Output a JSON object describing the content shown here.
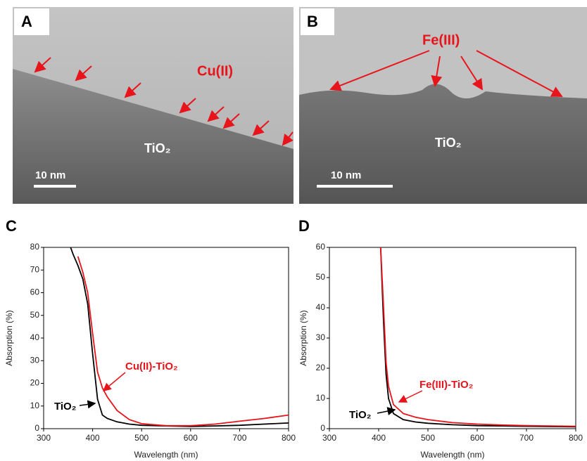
{
  "images": [
    {
      "panel": "A",
      "labels": [
        "Cu(II)",
        "TiO₂"
      ],
      "scale_bar": "10 nm"
    },
    {
      "panel": "B",
      "labels": [
        "Fe(III)",
        "TiO₂"
      ],
      "scale_bar": "10 nm"
    }
  ],
  "chart_data": [
    {
      "type": "line",
      "panel": "C",
      "x_label": "Wavelength (nm)",
      "y_label": "Absorption (%)",
      "x": [
        355,
        360,
        370,
        380,
        390,
        400,
        410,
        420,
        430,
        450,
        475,
        500,
        550,
        600,
        650,
        700,
        750,
        800
      ],
      "series": [
        {
          "name": "TiO₂",
          "color": "#000000",
          "values": [
            80,
            77,
            72,
            66,
            55,
            33,
            13,
            6,
            4.5,
            3,
            2,
            1.5,
            1.2,
            1,
            1.2,
            1.5,
            2,
            2.5
          ]
        },
        {
          "name": "Cu(II)-TiO₂",
          "color": "#e8141b",
          "values": [
            null,
            null,
            76,
            69,
            60,
            42,
            25,
            18,
            14,
            8,
            4,
            2.2,
            1.3,
            1.3,
            2,
            3.3,
            4.5,
            6
          ]
        }
      ],
      "xlim": [
        300,
        800
      ],
      "xticks": [
        300,
        400,
        500,
        600,
        700,
        800
      ],
      "ylim": [
        0,
        80
      ],
      "yticks": [
        0,
        10,
        20,
        30,
        40,
        50,
        60,
        70,
        80
      ]
    },
    {
      "type": "line",
      "panel": "D",
      "x_label": "Wavelength (nm)",
      "y_label": "Absorption (%)",
      "x": [
        404,
        410,
        415,
        420,
        430,
        450,
        475,
        500,
        550,
        600,
        650,
        700,
        750,
        800
      ],
      "series": [
        {
          "name": "TiO₂",
          "color": "#000000",
          "values": [
            60,
            35,
            18,
            10,
            5,
            3,
            2.2,
            1.8,
            1.3,
            1,
            0.9,
            0.8,
            0.7,
            0.6
          ]
        },
        {
          "name": "Fe(III)-TiO₂",
          "color": "#e8141b",
          "values": [
            60,
            40,
            22,
            14,
            8,
            5,
            3.8,
            3,
            2,
            1.5,
            1.2,
            1,
            0.9,
            0.8
          ]
        }
      ],
      "xlim": [
        300,
        800
      ],
      "xticks": [
        300,
        400,
        500,
        600,
        700,
        800
      ],
      "ylim": [
        0,
        60
      ],
      "yticks": [
        0,
        10,
        20,
        30,
        40,
        50,
        60
      ]
    }
  ]
}
